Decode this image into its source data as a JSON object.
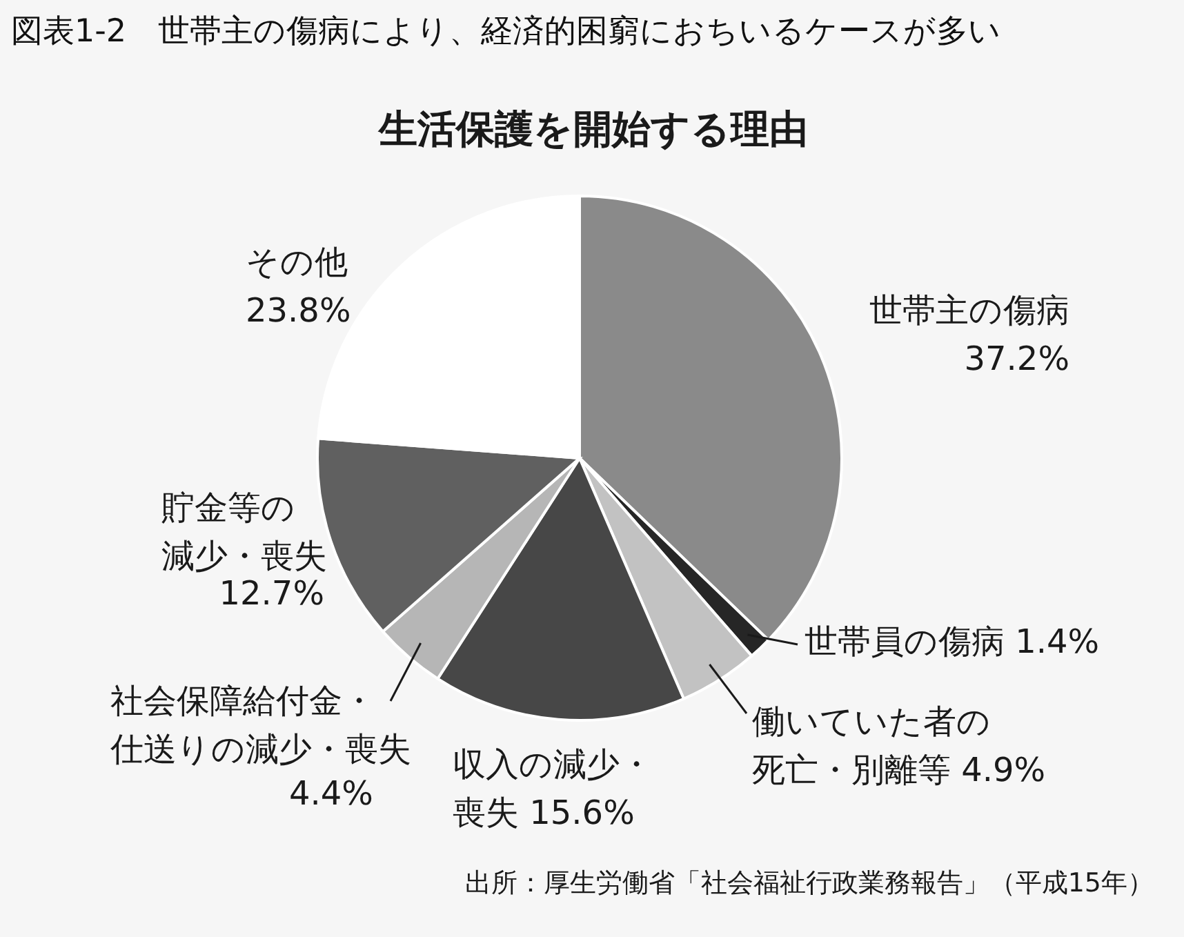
{
  "chart_data": {
    "type": "pie",
    "title": "図表1-2　世帯主の傷病により、経済的困窮におちいるケースが多い",
    "subtitle": "生活保護を開始する理由",
    "categories": [
      "世帯主の傷病",
      "世帯員の傷病",
      "働いていた者の死亡・別離等",
      "収入の減少・喪失",
      "社会保障給付金・仕送りの減少・喪失",
      "貯金等の減少・喪失",
      "その他"
    ],
    "values": [
      37.2,
      1.4,
      4.9,
      15.6,
      4.4,
      12.7,
      23.8
    ],
    "colors": [
      "#8a8a8a",
      "#262626",
      "#c2c2c2",
      "#474747",
      "#b6b6b6",
      "#606060",
      "#ffffff"
    ],
    "value_labels": [
      "37.2%",
      "1.4%",
      "4.9%",
      "15.6%",
      "4.4%",
      "12.7%",
      "23.8%"
    ],
    "annotations": [
      "出所：厚生労働省「社会福祉行政業務報告」（平成15年）"
    ]
  }
}
